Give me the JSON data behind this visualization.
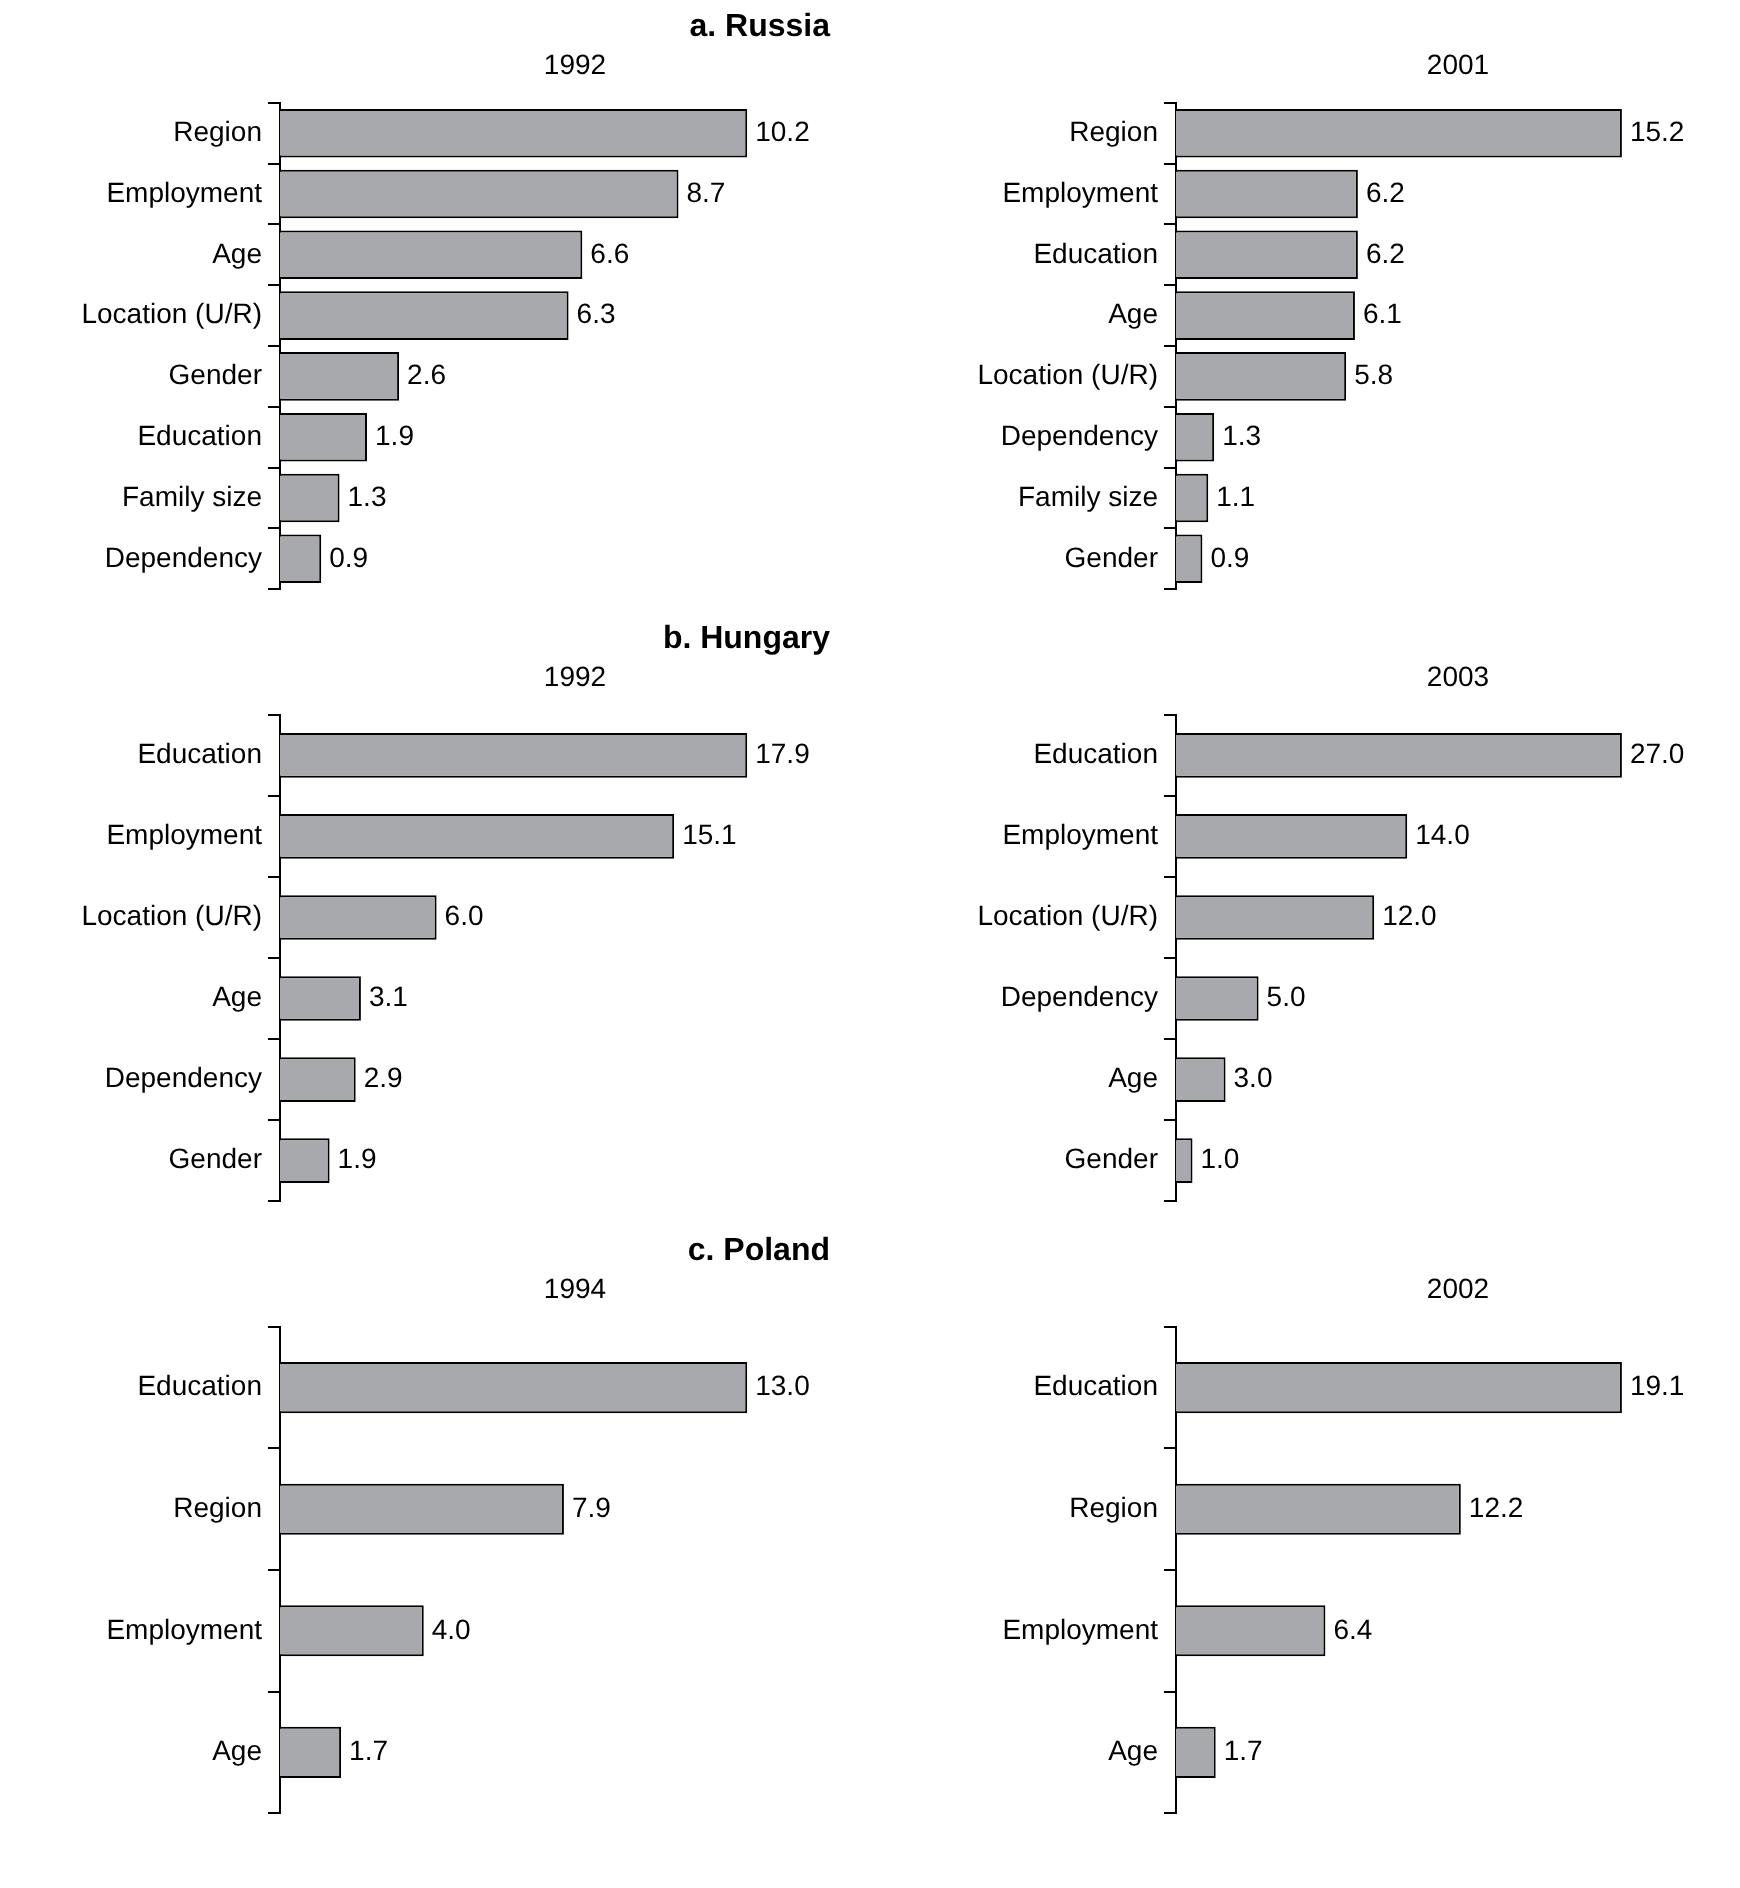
{
  "chart_data": [
    {
      "type": "bar",
      "orientation": "horizontal",
      "title": "a. Russia",
      "subtitle": "1992",
      "categories": [
        "Region",
        "Employment",
        "Age",
        "Location (U/R)",
        "Gender",
        "Education",
        "Family size",
        "Dependency"
      ],
      "values": [
        10.2,
        8.7,
        6.6,
        6.3,
        2.6,
        1.9,
        1.3,
        0.9
      ],
      "value_labels": [
        "10.2",
        "8.7",
        "6.6",
        "6.3",
        "2.6",
        "1.9",
        "1.3",
        "0.9"
      ],
      "color": "#a7a9ac",
      "tick_labels": "y",
      "legend": false
    },
    {
      "type": "bar",
      "orientation": "horizontal",
      "subtitle": "2001",
      "categories": [
        "Region",
        "Employment",
        "Education",
        "Age",
        "Location (U/R)",
        "Dependency",
        "Family size",
        "Gender"
      ],
      "values": [
        15.2,
        6.2,
        6.2,
        6.1,
        5.8,
        1.3,
        1.1,
        0.9
      ],
      "value_labels": [
        "15.2",
        "6.2",
        "6.2",
        "6.1",
        "5.8",
        "1.3",
        "1.1",
        "0.9"
      ],
      "color": "#a7a9ac",
      "tick_labels": "y",
      "legend": false
    },
    {
      "type": "bar",
      "orientation": "horizontal",
      "title": "b. Hungary",
      "subtitle": "1992",
      "categories": [
        "Education",
        "Employment",
        "Location (U/R)",
        "Age",
        "Dependency",
        "Gender"
      ],
      "values": [
        17.9,
        15.1,
        6.0,
        3.1,
        2.9,
        1.9
      ],
      "value_labels": [
        "17.9",
        "15.1",
        "6.0",
        "3.1",
        "2.9",
        "1.9"
      ],
      "color": "#a7a9ac",
      "tick_labels": "y",
      "legend": false
    },
    {
      "type": "bar",
      "orientation": "horizontal",
      "subtitle": "2003",
      "categories": [
        "Education",
        "Employment",
        "Location (U/R)",
        "Dependency",
        "Age",
        "Gender"
      ],
      "values": [
        27.0,
        14.0,
        12.0,
        5.0,
        3.0,
        1.0
      ],
      "value_labels": [
        "27.0",
        "14.0",
        "12.0",
        "5.0",
        "3.0",
        "1.0"
      ],
      "color": "#a7a9ac",
      "tick_labels": "y",
      "legend": false
    },
    {
      "type": "bar",
      "orientation": "horizontal",
      "title": "c. Poland",
      "subtitle": "1994",
      "categories": [
        "Education",
        "Region",
        "Employment",
        "Age"
      ],
      "values": [
        13.0,
        7.9,
        4.0,
        1.7
      ],
      "value_labels": [
        "13.0",
        "7.9",
        "4.0",
        "1.7"
      ],
      "color": "#a7a9ac",
      "tick_labels": "y",
      "legend": false
    },
    {
      "type": "bar",
      "orientation": "horizontal",
      "subtitle": "2002",
      "categories": [
        "Education",
        "Region",
        "Employment",
        "Age"
      ],
      "values": [
        19.1,
        12.2,
        6.4,
        1.7
      ],
      "value_labels": [
        "19.1",
        "12.2",
        "6.4",
        "1.7"
      ],
      "color": "#a7a9ac",
      "tick_labels": "y",
      "legend": false
    }
  ]
}
